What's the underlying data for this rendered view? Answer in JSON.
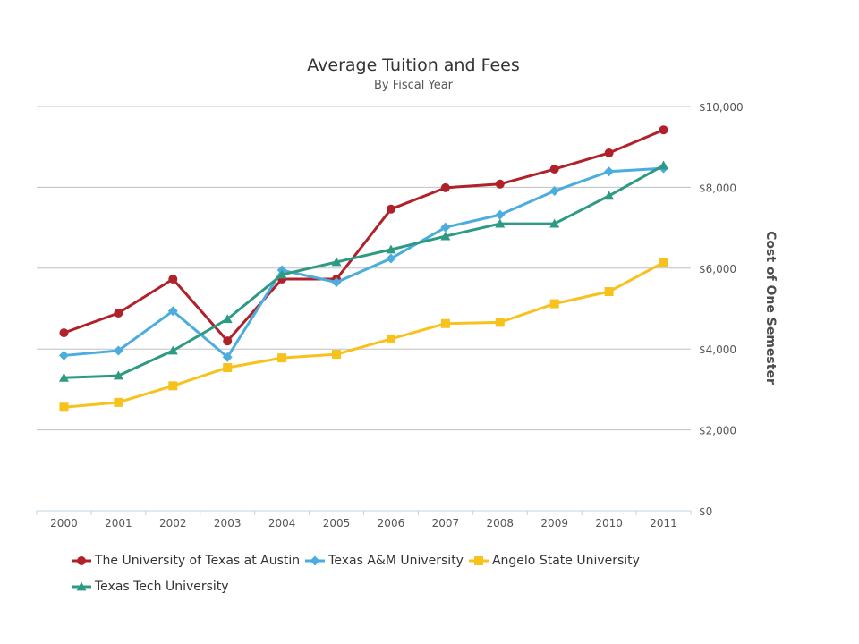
{
  "chart_data": {
    "type": "line",
    "title": "Average Tuition and Fees",
    "subtitle": "By Fiscal Year",
    "xlabel": "",
    "ylabel": "Cost of One Semester",
    "y_axis_side": "right",
    "ylim": [
      0,
      10000
    ],
    "yticks": [
      0,
      2000,
      4000,
      6000,
      8000,
      10000
    ],
    "ytick_labels": [
      "$0",
      "$2,000",
      "$4,000",
      "$6,000",
      "$8,000",
      "$10,000"
    ],
    "grid": true,
    "legend_position": "bottom",
    "categories": [
      "2000",
      "2001",
      "2002",
      "2003",
      "2004",
      "2005",
      "2006",
      "2007",
      "2008",
      "2009",
      "2010",
      "2011"
    ],
    "series": [
      {
        "name": "The University of Texas at Austin",
        "color": "#b0212a",
        "marker": "circle",
        "values": [
          4400,
          4890,
          5730,
          4200,
          5730,
          5730,
          7460,
          7990,
          8080,
          8450,
          8850,
          9420
        ]
      },
      {
        "name": "Texas A&M University",
        "color": "#4badde",
        "marker": "diamond",
        "values": [
          3840,
          3960,
          4940,
          3800,
          5950,
          5650,
          6240,
          7010,
          7320,
          7910,
          8390,
          8470
        ]
      },
      {
        "name": "Angelo State University",
        "color": "#f6c21b",
        "marker": "square",
        "values": [
          2560,
          2680,
          3090,
          3540,
          3780,
          3870,
          4250,
          4630,
          4660,
          5120,
          5420,
          6140
        ]
      },
      {
        "name": "Texas Tech University",
        "color": "#2e9a84",
        "marker": "triangle",
        "values": [
          3290,
          3340,
          3960,
          4740,
          5840,
          6150,
          6460,
          6790,
          7100,
          7100,
          7790,
          8540
        ]
      }
    ]
  }
}
